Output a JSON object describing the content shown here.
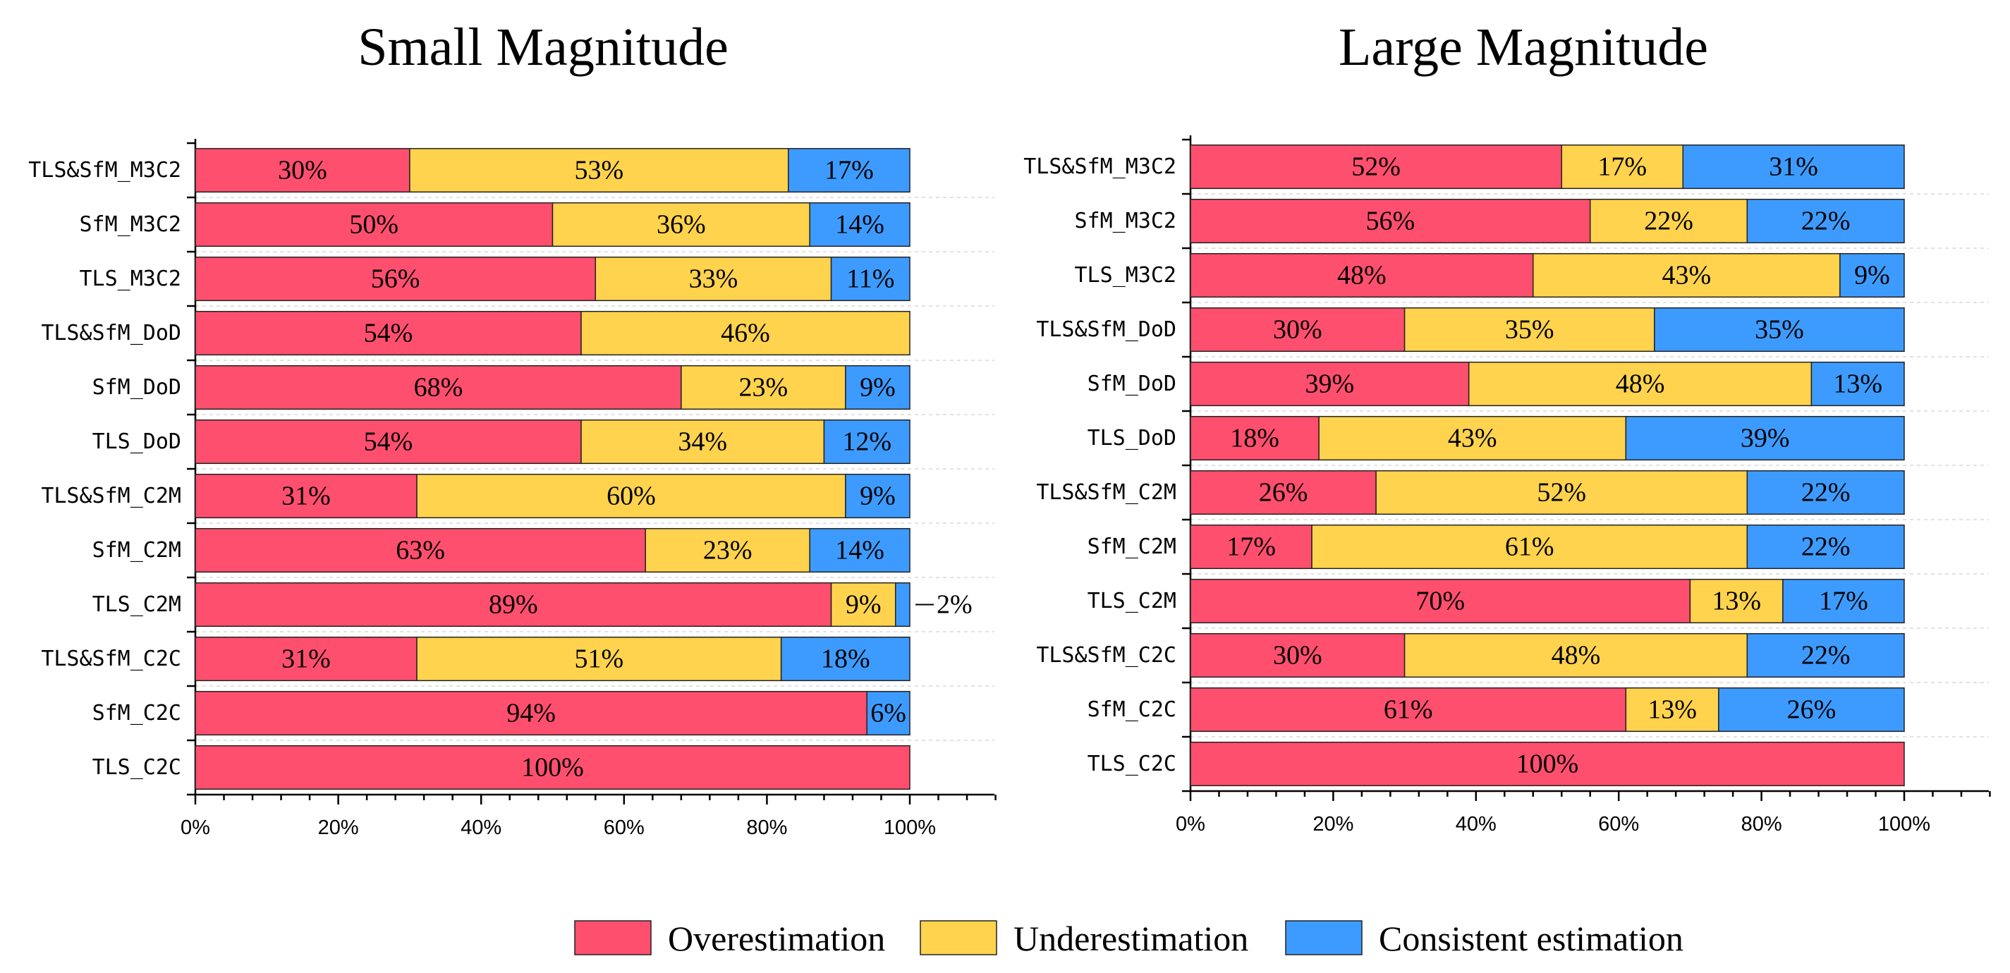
{
  "colors": {
    "overestimation": "#FF4F6E",
    "underestimation": "#FFD34D",
    "consistent": "#3D9BFF",
    "bar_stroke": "#222222",
    "grid": "#D9D9D9"
  },
  "legend": [
    {
      "key": "overestimation",
      "label": "Overestimation"
    },
    {
      "key": "underestimation",
      "label": "Underestimation"
    },
    {
      "key": "consistent",
      "label": "Consistent estimation"
    }
  ],
  "chart_data": [
    {
      "type": "bar",
      "orientation": "horizontal",
      "stacked": true,
      "title": "Small Magnitude",
      "xlabel": "",
      "ylabel": "",
      "xlim": [
        0,
        112
      ],
      "xticks": [
        "0%",
        "20%",
        "40%",
        "60%",
        "80%",
        "100%"
      ],
      "categories": [
        "TLS&SfM_M3C2",
        "SfM_M3C2",
        "TLS_M3C2",
        "TLS&SfM_DoD",
        "SfM_DoD",
        "TLS_DoD",
        "TLS&SfM_C2M",
        "SfM_C2M",
        "TLS_C2M",
        "TLS&SfM_C2C",
        "SfM_C2C",
        "TLS_C2C"
      ],
      "series": [
        {
          "name": "Overestimation",
          "key": "overestimation",
          "values": [
            30,
            50,
            56,
            54,
            68,
            54,
            31,
            63,
            89,
            31,
            94,
            100
          ]
        },
        {
          "name": "Underestimation",
          "key": "underestimation",
          "values": [
            53,
            36,
            33,
            46,
            23,
            34,
            60,
            23,
            9,
            51,
            0,
            0
          ]
        },
        {
          "name": "Consistent estimation",
          "key": "consistent",
          "values": [
            17,
            14,
            11,
            0,
            9,
            12,
            9,
            14,
            2,
            18,
            6,
            0
          ]
        }
      ],
      "annotations": [
        {
          "category": "TLS_C2M",
          "series": "Consistent estimation",
          "text": "2%",
          "placement": "outside-right"
        }
      ]
    },
    {
      "type": "bar",
      "orientation": "horizontal",
      "stacked": true,
      "title": "Large Magnitude",
      "xlabel": "",
      "ylabel": "",
      "xlim": [
        0,
        112
      ],
      "xticks": [
        "0%",
        "20%",
        "40%",
        "60%",
        "80%",
        "100%"
      ],
      "categories": [
        "TLS&SfM_M3C2",
        "SfM_M3C2",
        "TLS_M3C2",
        "TLS&SfM_DoD",
        "SfM_DoD",
        "TLS_DoD",
        "TLS&SfM_C2M",
        "SfM_C2M",
        "TLS_C2M",
        "TLS&SfM_C2C",
        "SfM_C2C",
        "TLS_C2C"
      ],
      "series": [
        {
          "name": "Overestimation",
          "key": "overestimation",
          "values": [
            52,
            56,
            48,
            30,
            39,
            18,
            26,
            17,
            70,
            30,
            61,
            100
          ]
        },
        {
          "name": "Underestimation",
          "key": "underestimation",
          "values": [
            17,
            22,
            43,
            35,
            48,
            43,
            52,
            61,
            13,
            48,
            13,
            0
          ]
        },
        {
          "name": "Consistent estimation",
          "key": "consistent",
          "values": [
            31,
            22,
            9,
            35,
            13,
            39,
            22,
            22,
            17,
            22,
            26,
            0
          ]
        }
      ],
      "annotations": []
    }
  ]
}
